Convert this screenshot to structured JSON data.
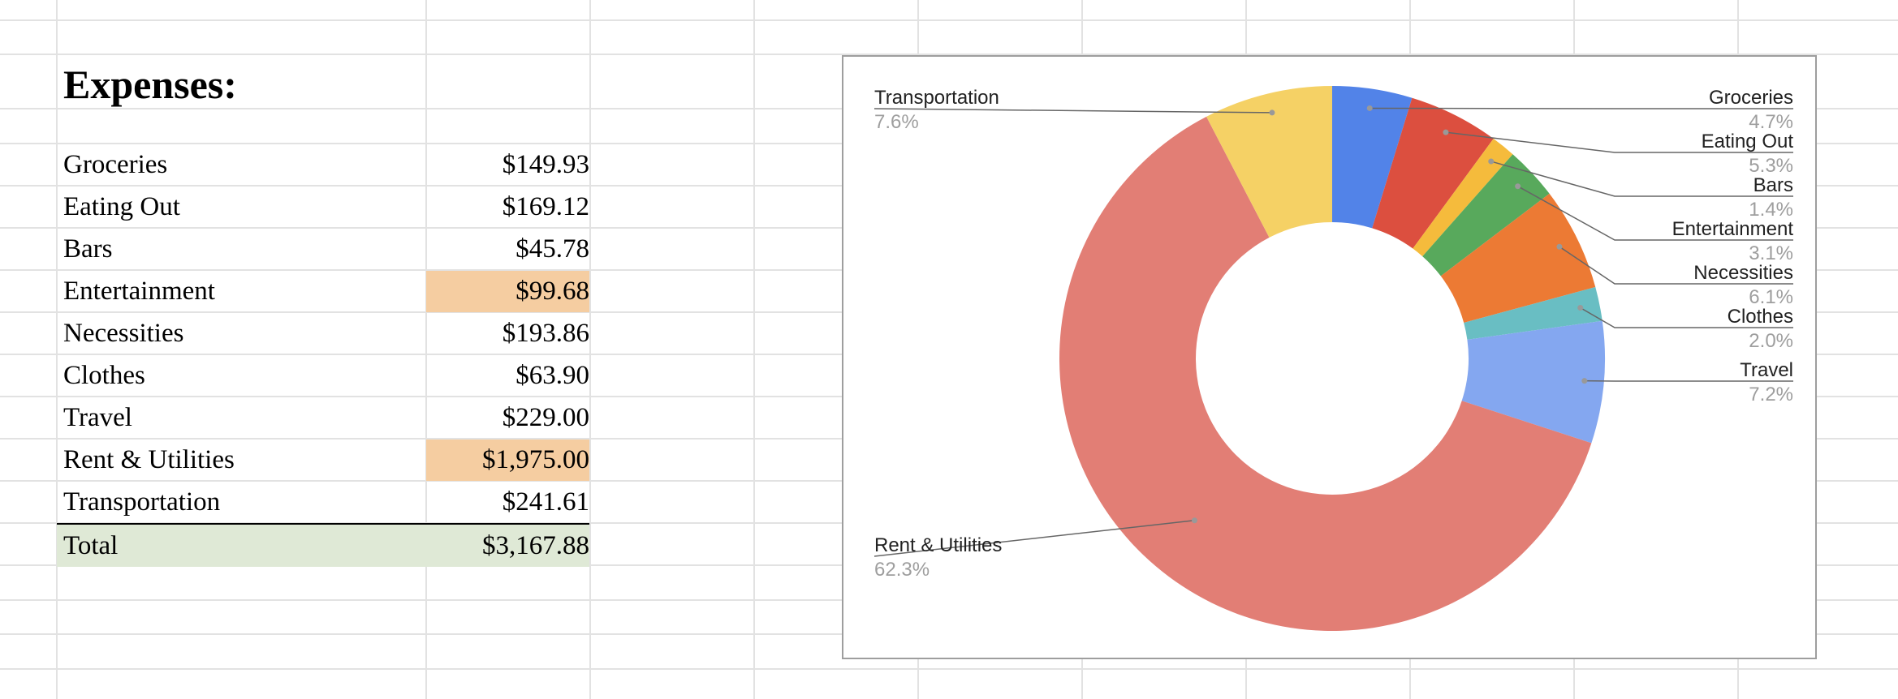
{
  "sheet": {
    "title": "Expenses:",
    "rows": [
      {
        "label": "Groceries",
        "amount": "$149.93",
        "highlight": false
      },
      {
        "label": "Eating Out",
        "amount": "$169.12",
        "highlight": false
      },
      {
        "label": "Bars",
        "amount": "$45.78",
        "highlight": false
      },
      {
        "label": "Entertainment",
        "amount": "$99.68",
        "highlight": true
      },
      {
        "label": "Necessities",
        "amount": "$193.86",
        "highlight": false
      },
      {
        "label": "Clothes",
        "amount": "$63.90",
        "highlight": false
      },
      {
        "label": "Travel",
        "amount": "$229.00",
        "highlight": false
      },
      {
        "label": "Rent & Utilities",
        "amount": "$1,975.00",
        "highlight": true
      },
      {
        "label": "Transportation",
        "amount": "$241.61",
        "highlight": false
      }
    ],
    "total": {
      "label": "Total",
      "amount": "$3,167.88"
    },
    "highlight_color": "#f5cda1",
    "total_color": "#dfe9d6"
  },
  "chart_data": {
    "type": "pie",
    "donut": true,
    "title": "",
    "categories": [
      "Groceries",
      "Eating Out",
      "Bars",
      "Entertainment",
      "Necessities",
      "Clothes",
      "Travel",
      "Rent & Utilities",
      "Transportation"
    ],
    "values": [
      149.93,
      169.12,
      45.78,
      99.68,
      193.86,
      63.9,
      229.0,
      1975.0,
      241.61
    ],
    "percent_labels": [
      "4.7%",
      "5.3%",
      "1.4%",
      "3.1%",
      "6.1%",
      "2.0%",
      "7.2%",
      "62.3%",
      "7.6%"
    ],
    "colors": [
      "#5283e8",
      "#dc4f3f",
      "#f5bb3c",
      "#58a95c",
      "#ec7a34",
      "#69bec3",
      "#84a7f0",
      "#e27e75",
      "#f5d165"
    ],
    "legend": "none"
  }
}
